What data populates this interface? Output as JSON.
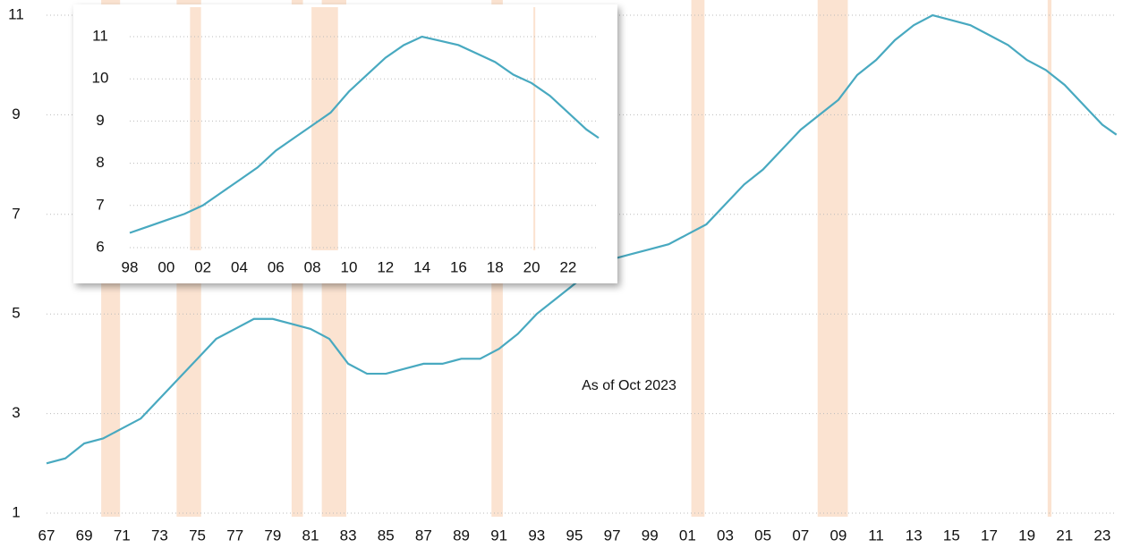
{
  "chart_data": [
    {
      "type": "line",
      "color": "#48a9c0",
      "recession_color": "#fbe3d1",
      "grid": true,
      "annotation": "As of Oct 2023",
      "x": [
        1967,
        1968,
        1969,
        1970,
        1971,
        1972,
        1973,
        1974,
        1975,
        1976,
        1977,
        1978,
        1979,
        1980,
        1981,
        1982,
        1983,
        1984,
        1985,
        1986,
        1987,
        1988,
        1989,
        1990,
        1991,
        1992,
        1993,
        1994,
        1995,
        1996,
        1997,
        1998,
        1999,
        2000,
        2001,
        2002,
        2003,
        2004,
        2005,
        2006,
        2007,
        2008,
        2009,
        2010,
        2011,
        2012,
        2013,
        2014,
        2015,
        2016,
        2017,
        2018,
        2019,
        2020,
        2021,
        2022,
        2023,
        2023.75
      ],
      "values": [
        2.0,
        2.1,
        2.4,
        2.5,
        2.7,
        2.9,
        3.3,
        3.7,
        4.1,
        4.5,
        4.7,
        4.9,
        4.9,
        4.8,
        4.7,
        4.5,
        4.0,
        3.8,
        3.8,
        3.9,
        4.0,
        4.0,
        4.1,
        4.1,
        4.3,
        4.6,
        5.0,
        5.3,
        5.6,
        5.9,
        6.1,
        6.2,
        6.3,
        6.4,
        6.6,
        6.8,
        7.2,
        7.6,
        7.9,
        8.3,
        8.7,
        9.0,
        9.3,
        9.8,
        10.1,
        10.5,
        10.8,
        11.0,
        10.9,
        10.8,
        10.6,
        10.4,
        10.1,
        9.9,
        9.6,
        9.2,
        8.8,
        8.6
      ],
      "recessions": [
        [
          1969.9,
          1970.9
        ],
        [
          1973.9,
          1975.2
        ],
        [
          1980.0,
          1980.6
        ],
        [
          1981.6,
          1982.9
        ],
        [
          1990.6,
          1991.2
        ],
        [
          2001.2,
          2001.9
        ],
        [
          2007.9,
          2009.5
        ],
        [
          2020.1,
          2020.3
        ]
      ],
      "xlim": [
        1967,
        2023.75
      ],
      "ylim": [
        1,
        11
      ],
      "yticks": [
        1,
        3,
        5,
        7,
        9,
        11
      ],
      "xticks": [
        {
          "value": 1967,
          "label": "67"
        },
        {
          "value": 1969,
          "label": "69"
        },
        {
          "value": 1971,
          "label": "71"
        },
        {
          "value": 1973,
          "label": "73"
        },
        {
          "value": 1975,
          "label": "75"
        },
        {
          "value": 1977,
          "label": "77"
        },
        {
          "value": 1979,
          "label": "79"
        },
        {
          "value": 1981,
          "label": "81"
        },
        {
          "value": 1983,
          "label": "83"
        },
        {
          "value": 1985,
          "label": "85"
        },
        {
          "value": 1987,
          "label": "87"
        },
        {
          "value": 1989,
          "label": "89"
        },
        {
          "value": 1991,
          "label": "91"
        },
        {
          "value": 1993,
          "label": "93"
        },
        {
          "value": 1995,
          "label": "95"
        },
        {
          "value": 1997,
          "label": "97"
        },
        {
          "value": 1999,
          "label": "99"
        },
        {
          "value": 2001,
          "label": "01"
        },
        {
          "value": 2003,
          "label": "03"
        },
        {
          "value": 2005,
          "label": "05"
        },
        {
          "value": 2007,
          "label": "07"
        },
        {
          "value": 2009,
          "label": "09"
        },
        {
          "value": 2011,
          "label": "11"
        },
        {
          "value": 2013,
          "label": "13"
        },
        {
          "value": 2015,
          "label": "15"
        },
        {
          "value": 2017,
          "label": "17"
        },
        {
          "value": 2019,
          "label": "19"
        },
        {
          "value": 2021,
          "label": "21"
        },
        {
          "value": 2023,
          "label": "23"
        }
      ]
    },
    {
      "type": "line",
      "color": "#48a9c0",
      "recession_color": "#fbe3d1",
      "grid": true,
      "x": [
        1998,
        1999,
        2000,
        2001,
        2002,
        2003,
        2004,
        2005,
        2006,
        2007,
        2008,
        2009,
        2010,
        2011,
        2012,
        2013,
        2014,
        2015,
        2016,
        2017,
        2018,
        2019,
        2020,
        2021,
        2022,
        2023,
        2023.67
      ],
      "values": [
        6.35,
        6.5,
        6.65,
        6.8,
        7.0,
        7.3,
        7.6,
        7.9,
        8.3,
        8.6,
        8.9,
        9.2,
        9.7,
        10.1,
        10.5,
        10.8,
        11.0,
        10.9,
        10.8,
        10.6,
        10.4,
        10.1,
        9.9,
        9.6,
        9.2,
        8.8,
        8.6
      ],
      "recessions": [
        [
          2001.3,
          2001.9
        ],
        [
          2007.95,
          2009.4
        ],
        [
          2020.1,
          2020.2
        ]
      ],
      "xlim": [
        1998,
        2023.67
      ],
      "ylim": [
        6,
        11
      ],
      "yticks": [
        6,
        7,
        8,
        9,
        10,
        11
      ],
      "xticks": [
        {
          "value": 1998,
          "label": "98"
        },
        {
          "value": 2000,
          "label": "00"
        },
        {
          "value": 2002,
          "label": "02"
        },
        {
          "value": 2004,
          "label": "04"
        },
        {
          "value": 2006,
          "label": "06"
        },
        {
          "value": 2008,
          "label": "08"
        },
        {
          "value": 2010,
          "label": "10"
        },
        {
          "value": 2012,
          "label": "12"
        },
        {
          "value": 2014,
          "label": "14"
        },
        {
          "value": 2016,
          "label": "16"
        },
        {
          "value": 2018,
          "label": "18"
        },
        {
          "value": 2020,
          "label": "20"
        },
        {
          "value": 2022,
          "label": "22"
        }
      ]
    }
  ]
}
